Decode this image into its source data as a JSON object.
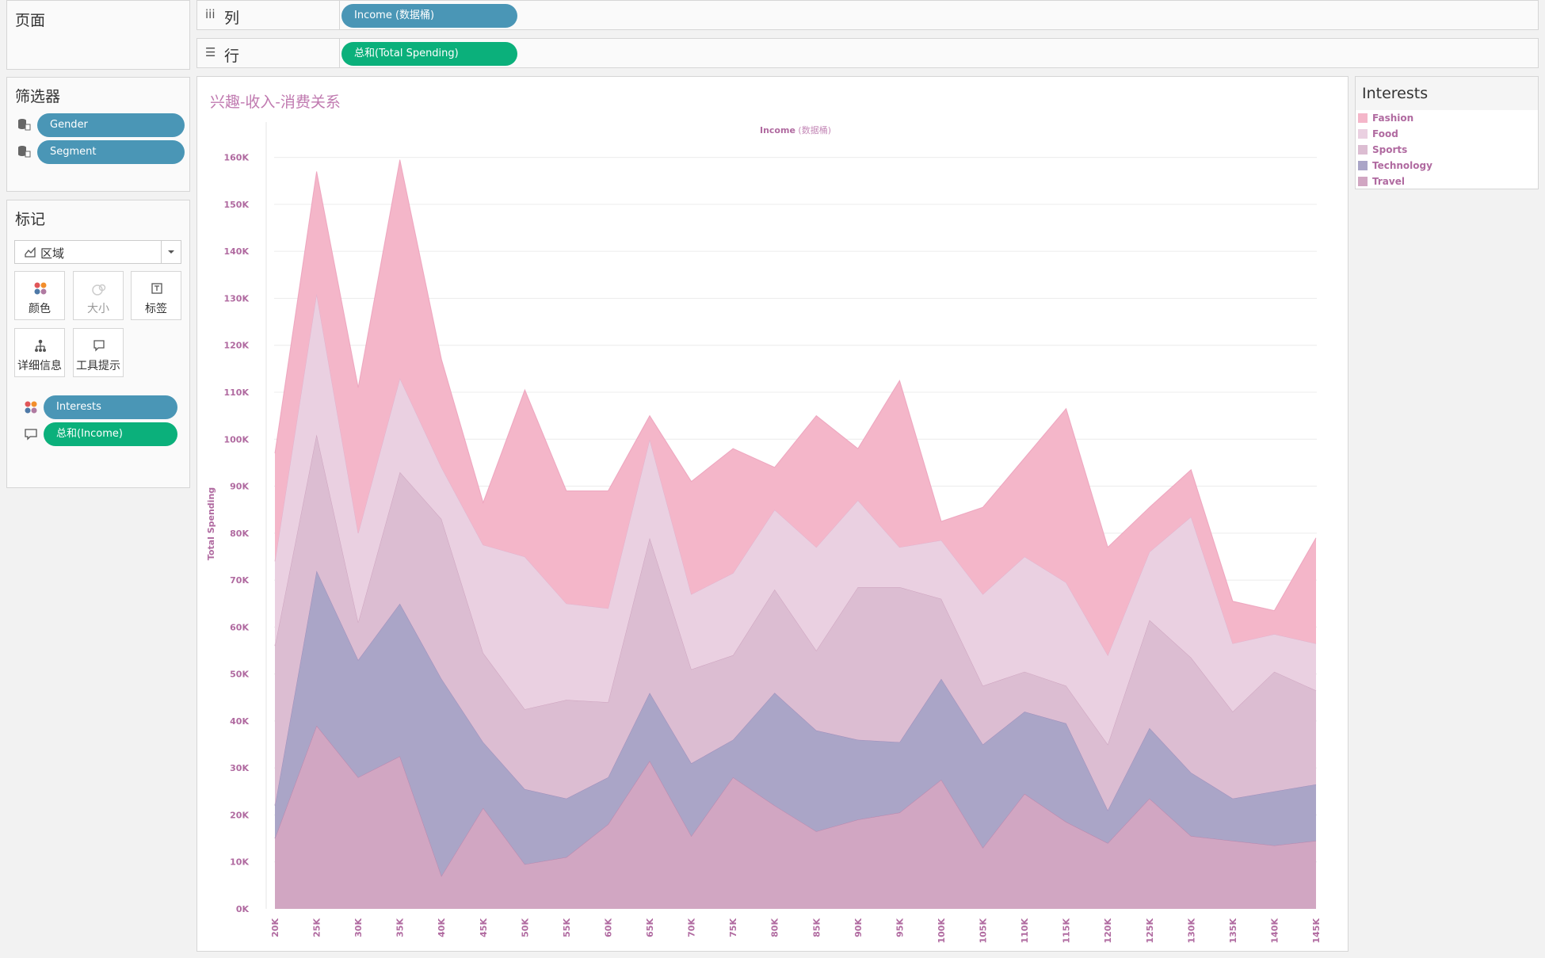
{
  "pages_panel": {
    "title": "页面"
  },
  "filters_panel": {
    "title": "筛选器",
    "items": [
      {
        "label": "Gender",
        "icon": "database-filter-icon"
      },
      {
        "label": "Segment",
        "icon": "database-filter-icon"
      }
    ]
  },
  "marks_panel": {
    "title": "标记",
    "mark_type": "区域",
    "buttons": [
      {
        "label": "颜色",
        "icon": "color-dots-icon",
        "enabled": true
      },
      {
        "label": "大小",
        "icon": "size-icon",
        "enabled": false
      },
      {
        "label": "标签",
        "icon": "label-icon",
        "enabled": true
      },
      {
        "label": "详细信息",
        "icon": "detail-icon",
        "enabled": true
      },
      {
        "label": "工具提示",
        "icon": "tooltip-icon",
        "enabled": true
      }
    ],
    "fields": [
      {
        "label": "Interests",
        "icon": "color-dots-icon",
        "pill_color": "#4a96b6"
      },
      {
        "label": "总和(Income)",
        "icon": "tooltip-icon",
        "pill_color": "#0bb07b"
      }
    ]
  },
  "shelves": {
    "columns": {
      "label": "列",
      "icon": "columns-icon",
      "pill": "Income (数据桶)"
    },
    "rows": {
      "label": "行",
      "icon": "rows-icon",
      "pill": "总和(Total Spending)"
    }
  },
  "legend": {
    "title": "Interests",
    "items": [
      {
        "label": "Fashion",
        "color": "#f4b6c9"
      },
      {
        "label": "Food",
        "color": "#ead0e1"
      },
      {
        "label": "Sports",
        "color": "#dcbdd2"
      },
      {
        "label": "Technology",
        "color": "#aaa5c7"
      },
      {
        "label": "Travel",
        "color": "#d1a6c2"
      }
    ]
  },
  "chart_data": {
    "type": "area",
    "stacked": true,
    "title": "兴趣-收入-消费关系",
    "xlabel_main": "Income",
    "xlabel_suffix": " (数据桶)",
    "ylabel": "Total Spending",
    "ylim": [
      0,
      165000
    ],
    "yticks": [
      0,
      10000,
      20000,
      30000,
      40000,
      50000,
      60000,
      70000,
      80000,
      90000,
      100000,
      110000,
      120000,
      130000,
      140000,
      150000,
      160000
    ],
    "ytick_labels": [
      "0K",
      "10K",
      "20K",
      "30K",
      "40K",
      "50K",
      "60K",
      "70K",
      "80K",
      "90K",
      "100K",
      "110K",
      "120K",
      "130K",
      "140K",
      "150K",
      "160K"
    ],
    "categories": [
      "20K",
      "25K",
      "30K",
      "35K",
      "40K",
      "45K",
      "50K",
      "55K",
      "60K",
      "65K",
      "70K",
      "75K",
      "80K",
      "85K",
      "90K",
      "95K",
      "100K",
      "105K",
      "110K",
      "115K",
      "120K",
      "125K",
      "130K",
      "135K",
      "140K",
      "145K"
    ],
    "grid": true,
    "series": [
      {
        "name": "Travel",
        "color": "#d1a6c2",
        "stroke": "#b07aa5",
        "values": [
          15000,
          39000,
          28000,
          32500,
          7000,
          21500,
          9500,
          11000,
          18000,
          31500,
          15500,
          28000,
          22000,
          16500,
          19000,
          20500,
          27500,
          13000,
          24500,
          18500,
          14000,
          23500,
          15500,
          14500,
          13500,
          14500
        ]
      },
      {
        "name": "Technology",
        "color": "#aaa5c7",
        "stroke": "#9a86b6",
        "values": [
          7000,
          33000,
          25000,
          32500,
          42000,
          14000,
          16000,
          12500,
          10000,
          14500,
          15500,
          8000,
          24000,
          21500,
          17000,
          15000,
          21500,
          22000,
          17500,
          21000,
          7000,
          15000,
          13500,
          9000,
          11500,
          12000
        ]
      },
      {
        "name": "Sports",
        "color": "#dcbdd2",
        "stroke": "#c89ab8",
        "values": [
          34000,
          29000,
          8000,
          28000,
          34000,
          19000,
          17000,
          21000,
          16000,
          33000,
          20000,
          18000,
          22000,
          17000,
          32500,
          33000,
          17000,
          12500,
          8500,
          8000,
          14000,
          23000,
          24500,
          18500,
          25500,
          20000
        ]
      },
      {
        "name": "Food",
        "color": "#ead0e1",
        "stroke": "#e0a8c6",
        "values": [
          18000,
          30000,
          19000,
          20000,
          11000,
          23000,
          32500,
          20500,
          20000,
          21000,
          16000,
          17500,
          17000,
          22000,
          18500,
          8500,
          12500,
          19500,
          24500,
          22000,
          19000,
          14500,
          30000,
          14500,
          8000,
          10000
        ]
      },
      {
        "name": "Fashion",
        "color": "#f4b6c9",
        "stroke": "#eb9bb8",
        "values": [
          23000,
          26000,
          31000,
          46500,
          23000,
          9000,
          35500,
          24000,
          25000,
          5000,
          24000,
          26500,
          9000,
          28000,
          11000,
          35500,
          4000,
          18500,
          21000,
          37000,
          23000,
          9500,
          10000,
          9000,
          5000,
          22500
        ]
      }
    ]
  }
}
